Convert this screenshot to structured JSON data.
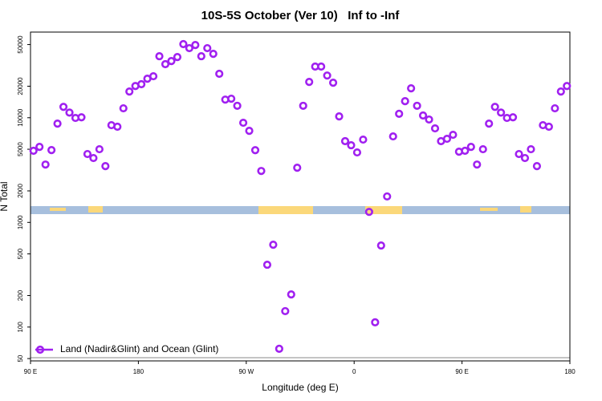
{
  "chart_data": {
    "type": "scatter",
    "title": "10S-5S October (Ver 10)   Inf to -Inf",
    "xlabel": "Longitude (deg E)",
    "ylabel": "N Total",
    "x": [
      92.5,
      97.5,
      102.5,
      107.5,
      112.5,
      117.5,
      122.5,
      127.5,
      132.5,
      137.5,
      142.5,
      147.5,
      152.5,
      157.5,
      162.5,
      167.5,
      172.5,
      177.5,
      182.5,
      187.5,
      192.5,
      197.5,
      202.5,
      207.5,
      212.5,
      217.5,
      222.5,
      227.5,
      232.5,
      237.5,
      242.5,
      247.5,
      252.5,
      257.5,
      262.5,
      267.5,
      272.5,
      277.5,
      282.5,
      287.5,
      292.5,
      297.5,
      302.5,
      307.5,
      312.5,
      317.5,
      322.5,
      327.5,
      332.5,
      337.5,
      342.5,
      347.5,
      352.5,
      357.5,
      362.5,
      367.5,
      372.5,
      377.5,
      382.5,
      387.5,
      392.5,
      397.5,
      402.5,
      407.5,
      412.5,
      417.5,
      422.5,
      427.5,
      432.5,
      437.5,
      442.5,
      447.5,
      452.5,
      457.5,
      462.5,
      467.5,
      472.5,
      477.5,
      482.5,
      487.5,
      492.5,
      497.5,
      502.5,
      507.5,
      512.5,
      517.5,
      522.5,
      527.5,
      532.5,
      537.5
    ],
    "series": [
      {
        "name": "Land (Nadir&Glint) and Ocean (Glint)",
        "color": "#a020f0",
        "values": [
          4830,
          5270,
          3570,
          4910,
          8790,
          12700,
          11200,
          9950,
          10100,
          4500,
          4120,
          5000,
          3450,
          8490,
          8200,
          12300,
          17800,
          20100,
          20900,
          23600,
          24900,
          38700,
          32500,
          34800,
          38000,
          50500,
          46200,
          49500,
          38700,
          46200,
          40800,
          26300,
          14900,
          15200,
          13000,
          8950,
          7500,
          4900,
          3100,
          394,
          612,
          62,
          142,
          205,
          3330,
          13000,
          22000,
          30800,
          30800,
          25300,
          21600,
          10300,
          5970,
          5460,
          4660,
          6180,
          1260,
          111,
          601,
          1770,
          6630,
          10900,
          14400,
          19100,
          13000,
          10500,
          9610,
          7910,
          5970,
          6290,
          6870,
          4740,
          4830,
          5270,
          3570,
          5000,
          8790,
          12700,
          11200,
          9950,
          10100,
          4500,
          4120,
          5000,
          3450,
          8490,
          8200,
          12300,
          17800,
          20100
        ]
      }
    ],
    "xlim": [
      90,
      540
    ],
    "ylim": [
      47.5,
      65800
    ],
    "log_y": true,
    "legend": "bottom-left",
    "xticks": [
      {
        "value": 90,
        "label": "90 E"
      },
      180,
      {
        "value": 270,
        "label": "90 W"
      },
      {
        "value": 360,
        "label": "0"
      },
      {
        "value": 450,
        "label": "90 E"
      },
      {
        "value": 540,
        "label": "180"
      }
    ],
    "yticks": [
      50,
      100,
      200,
      500,
      1000,
      2000,
      5000,
      10000,
      20000,
      50000
    ]
  }
}
